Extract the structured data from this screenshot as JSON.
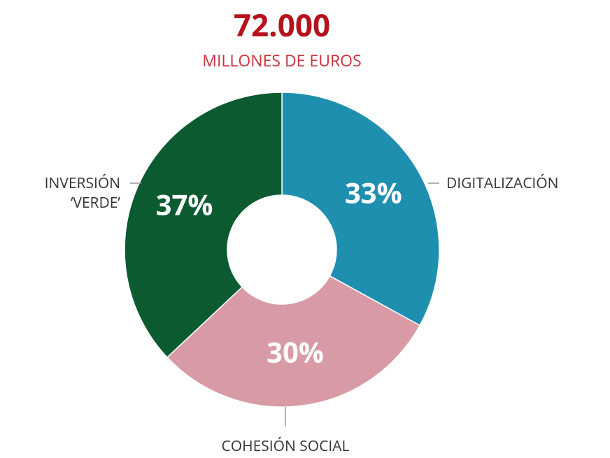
{
  "chart_data": {
    "type": "pie",
    "donut": true,
    "title": "72.000",
    "subtitle": "MILLONES DE EUROS",
    "categories": [
      "DIGITALIZACIÓN",
      "COHESIÓN SOCIAL",
      "INVERSIÓN\n‘VERDE’"
    ],
    "values": [
      33,
      30,
      37
    ],
    "value_labels": [
      "33%",
      "30%",
      "37%"
    ],
    "colors": [
      "#1f8fb0",
      "#d89ba5",
      "#0b5a30"
    ]
  }
}
